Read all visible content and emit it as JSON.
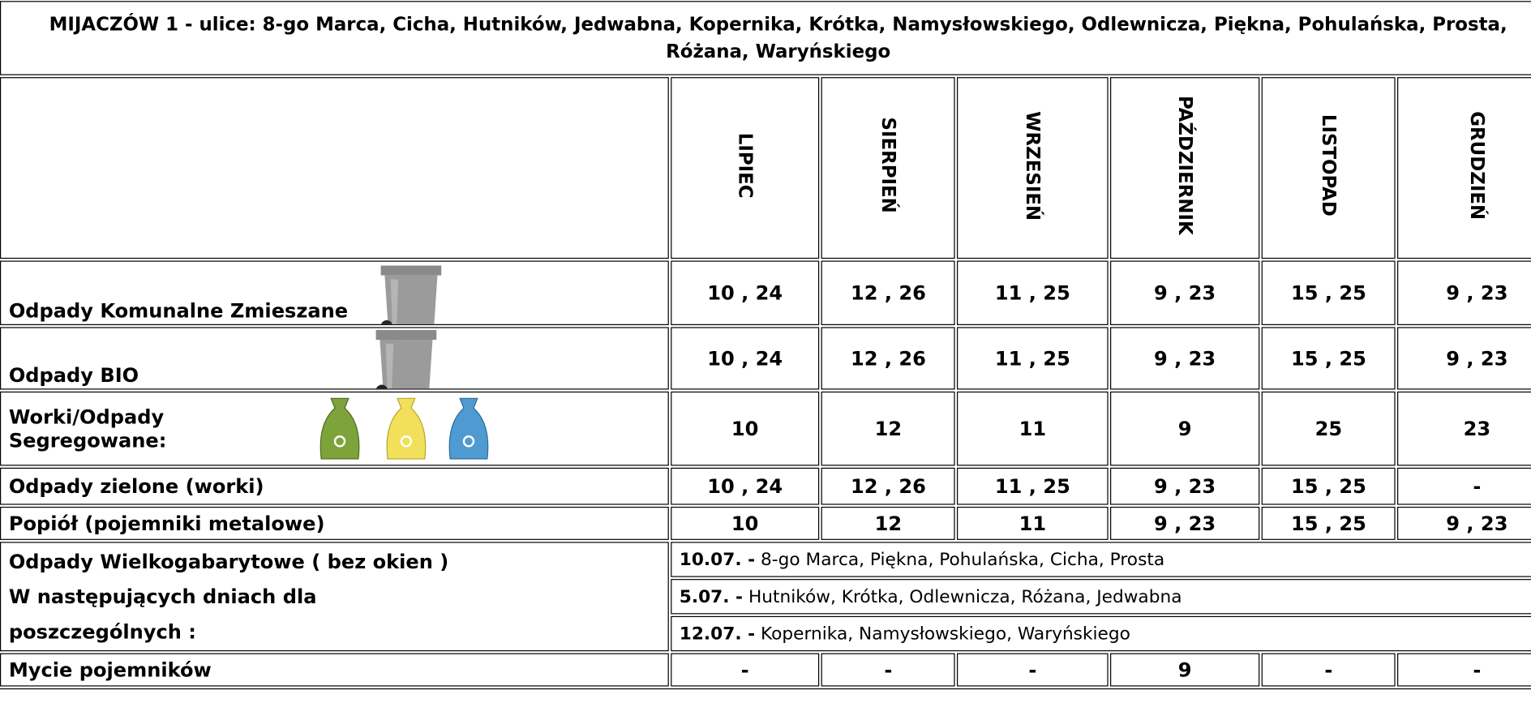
{
  "title": "MIJACZÓW 1 - ulice: 8-go Marca, Cicha, Hutników, Jedwabna, Kopernika, Krótka, Namysłowskiego, Odlewnicza, Piękna, Pohulańska, Prosta, Różana, Waryńskiego",
  "months": [
    "LIPIEC",
    "SIERPIEŃ",
    "WRZESIEŃ",
    "PAŹDZIERNIK",
    "LISTOPAD",
    "GRUDZIEŃ"
  ],
  "rows": [
    {
      "label": "Odpady Komunalne Zmieszane",
      "cells": [
        "10 , 24",
        "12 , 26",
        "11 , 25",
        "9 , 23",
        "15 , 25",
        "9 , 23"
      ]
    },
    {
      "label": "Odpady BIO",
      "cells": [
        "10 , 24",
        "12 , 26",
        "11 , 25",
        "9 , 23",
        "15 , 25",
        "9 , 23"
      ]
    },
    {
      "label": "Worki/Odpady Segregowane:",
      "cells": [
        "10",
        "12",
        "11",
        "9",
        "25",
        "23"
      ]
    },
    {
      "label": "Odpady zielone (worki)",
      "cells": [
        "10 , 24",
        "12 , 26",
        "11 , 25",
        "9 , 23",
        "15 , 25",
        "-"
      ]
    },
    {
      "label": "Popiół (pojemniki metalowe)",
      "cells": [
        "10",
        "12",
        "11",
        "9 , 23",
        "15 , 25",
        "9 , 23"
      ]
    }
  ],
  "bulky": {
    "label": [
      "Odpady Wielkogabarytowe ( bez okien )",
      "W następujących dniach dla",
      "poszczególnych :"
    ],
    "entries": [
      {
        "date": "10.07. -",
        "streets": "8-go Marca, Piękna, Pohulańska, Cicha, Prosta"
      },
      {
        "date": "5.07. -",
        "streets": "Hutników, Krótka, Odlewnicza, Różana, Jedwabna"
      },
      {
        "date": "12.07. -",
        "streets": "Kopernika, Namysłowskiego, Waryńskiego"
      }
    ]
  },
  "washing": {
    "label": "Mycie pojemników",
    "cells": [
      "-",
      "-",
      "-",
      "9",
      "-",
      "-"
    ]
  }
}
